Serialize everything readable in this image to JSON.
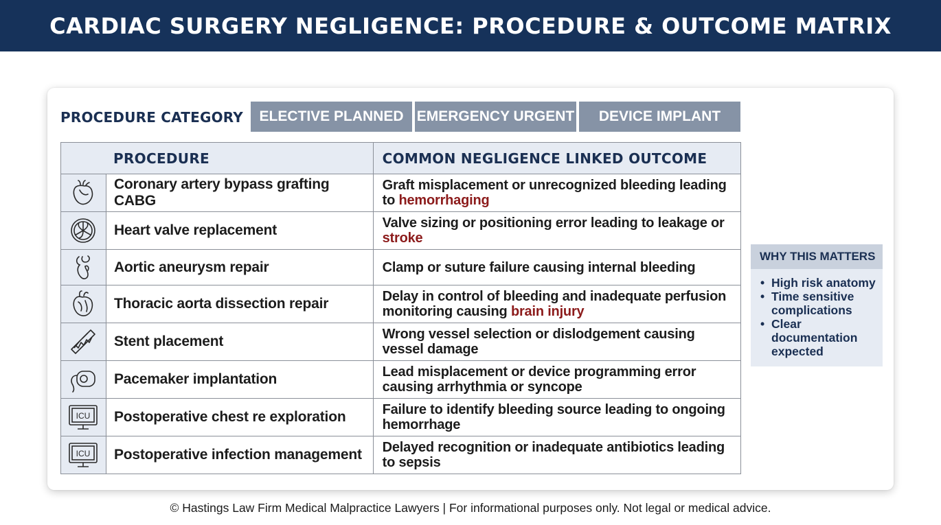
{
  "header": {
    "title": "CARDIAC SURGERY NEGLIGENCE: PROCEDURE & OUTCOME MATRIX"
  },
  "category": {
    "label": "PROCEDURE CATEGORY",
    "tabs": [
      {
        "label": "ELECTIVE PLANNED"
      },
      {
        "label": "EMERGENCY URGENT"
      },
      {
        "label": "DEVICE IMPLANT"
      }
    ]
  },
  "table": {
    "headers": {
      "procedure": "PROCEDURE",
      "outcome": "COMMON NEGLIGENCE LINKED OUTCOME"
    },
    "rows": [
      {
        "icon": "heart-icon",
        "procedure": "Coronary artery bypass grafting CABG",
        "outcome": "Graft misplacement or unrecognized bleeding leading to ",
        "highlight": "hemorrhaging",
        "outcome_after": ""
      },
      {
        "icon": "valve-icon",
        "procedure": "Heart valve replacement",
        "outcome": "Valve sizing or positioning error leading to leakage or ",
        "highlight": "stroke",
        "outcome_after": ""
      },
      {
        "icon": "aorta-icon",
        "procedure": "Aortic aneurysm repair",
        "outcome": "Clamp or suture failure causing internal bleeding",
        "highlight": "",
        "outcome_after": ""
      },
      {
        "icon": "heart-anatomy-icon",
        "procedure": "Thoracic aorta dissection repair",
        "outcome": "Delay in control of bleeding and inadequate perfusion monitoring causing ",
        "highlight": "brain injury",
        "outcome_after": ""
      },
      {
        "icon": "stent-icon",
        "procedure": "Stent placement",
        "outcome": "Wrong vessel selection or dislodgement causing vessel damage",
        "highlight": "",
        "outcome_after": ""
      },
      {
        "icon": "pacemaker-icon",
        "procedure": "Pacemaker implantation",
        "outcome": "Lead misplacement or device programming error causing arrhythmia or syncope",
        "highlight": "",
        "outcome_after": ""
      },
      {
        "icon": "icu-monitor-icon",
        "icon_text": "ICU",
        "procedure": "Postoperative chest re exploration",
        "outcome": "Failure to identify bleeding source leading to ongoing hemorrhage",
        "highlight": "",
        "outcome_after": ""
      },
      {
        "icon": "icu-monitor-icon",
        "icon_text": "ICU",
        "procedure": "Postoperative infection management",
        "outcome": "Delayed recognition or inadequate antibiotics leading to sepsis",
        "highlight": "",
        "outcome_after": ""
      }
    ]
  },
  "matters": {
    "title": "WHY THIS MATTERS",
    "items": [
      "High risk anatomy",
      "Time sensitive complications",
      "Clear documentation expected"
    ]
  },
  "footer": {
    "text": "© Hastings Law Firm Medical Malpractice Lawyers | For informational purposes only. Not legal or medical advice."
  },
  "colors": {
    "header_bg": "#16325a",
    "tab_bg": "#8693a6",
    "highlight": "#8c1b1b",
    "panel_bg": "#e6ebf3"
  }
}
